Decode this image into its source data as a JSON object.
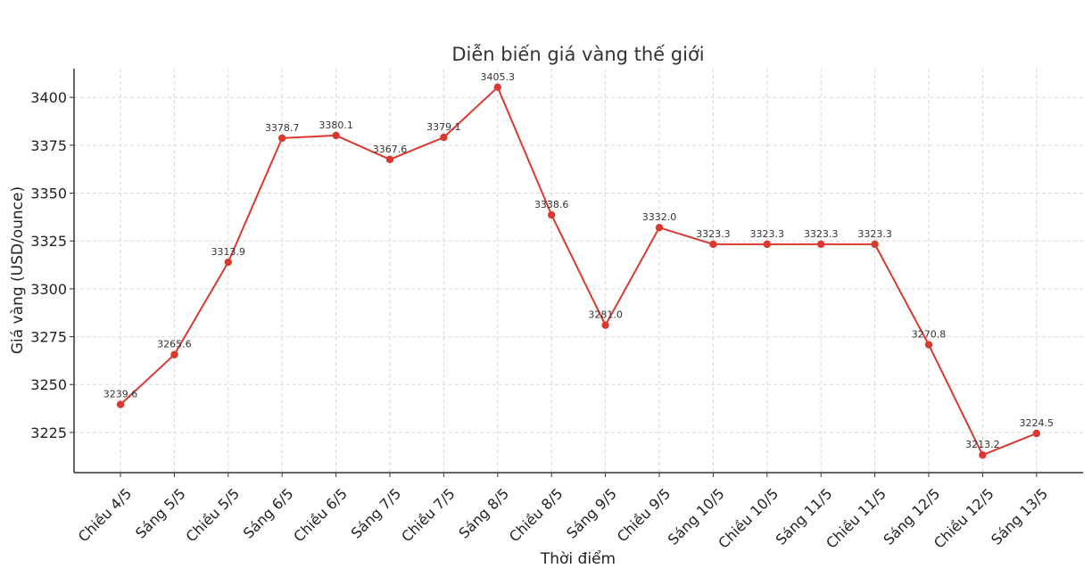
{
  "chart_data": {
    "type": "line",
    "title": "Diễn biến giá vàng thế giới",
    "xlabel": "Thời điểm",
    "ylabel": "Giá vàng (USD/ounce)",
    "categories": [
      "Chiều 4/5",
      "Sáng 5/5",
      "Chiều 5/5",
      "Sáng 6/5",
      "Chiều 6/5",
      "Sáng 7/5",
      "Chiều 7/5",
      "Sáng 8/5",
      "Chiều 8/5",
      "Sáng 9/5",
      "Chiều 9/5",
      "Sáng 10/5",
      "Chiều 10/5",
      "Sáng 11/5",
      "Chiều 11/5",
      "Sáng 12/5",
      "Chiều 12/5",
      "Sáng 13/5"
    ],
    "values": [
      3239.6,
      3265.6,
      3313.9,
      3378.7,
      3380.1,
      3367.6,
      3379.1,
      3405.3,
      3338.6,
      3281.0,
      3332.0,
      3323.3,
      3323.3,
      3323.3,
      3323.3,
      3270.8,
      3213.2,
      3224.5
    ],
    "value_labels": [
      "3239.6",
      "3265.6",
      "3313.9",
      "3378.7",
      "3380.1",
      "3367.6",
      "3379.1",
      "3405.3",
      "3338.6",
      "3281.0",
      "3332.0",
      "3323.3",
      "3323.3",
      "3323.3",
      "3323.3",
      "3270.8",
      "3213.2",
      "3224.5"
    ],
    "yticks": [
      3225,
      3250,
      3275,
      3300,
      3325,
      3350,
      3375,
      3400
    ],
    "ylim": [
      3204,
      3415
    ],
    "grid": true,
    "line_color": "#d9392f",
    "marker_color": "#d9392f"
  }
}
